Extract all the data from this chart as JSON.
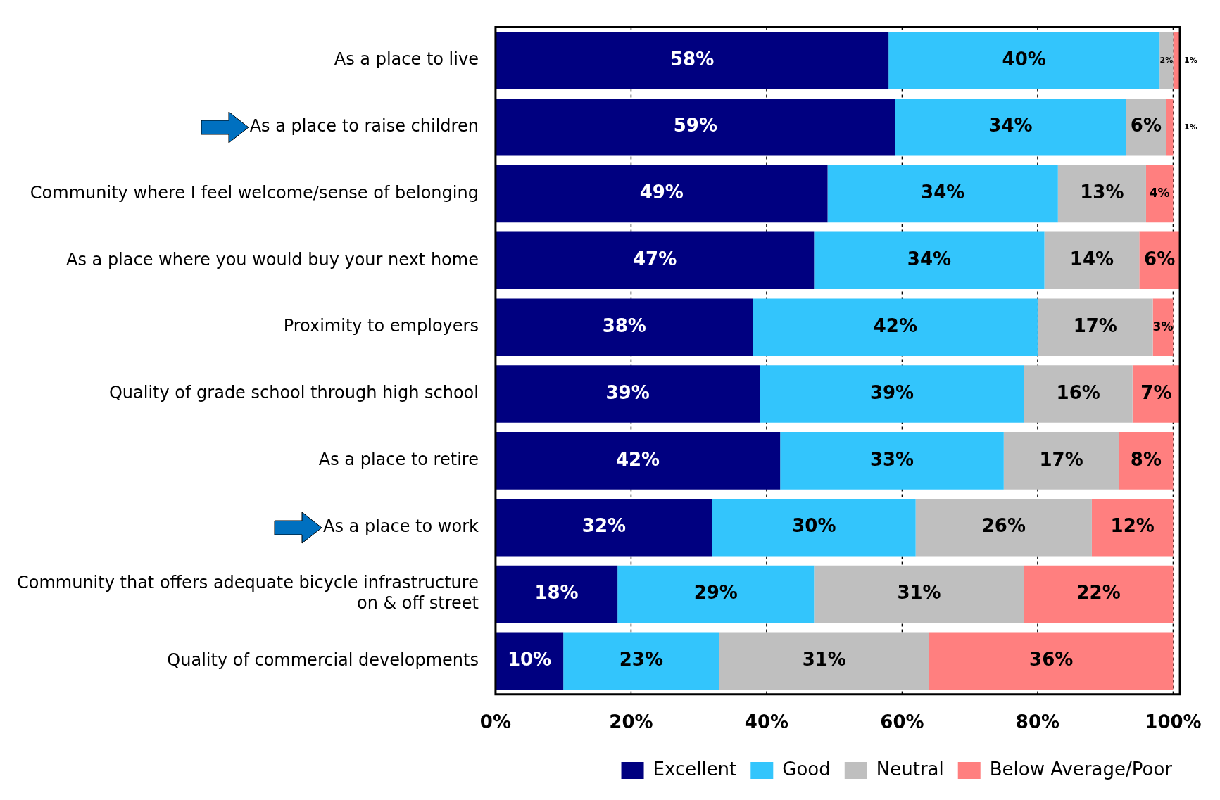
{
  "chart_data": {
    "type": "bar",
    "orientation": "horizontal",
    "stacked": true,
    "categories": [
      "As a place to live",
      "As a place to raise children",
      "Community where I feel welcome/sense of belonging",
      "As a place where you would buy your next home",
      "Proximity to employers",
      "Quality of grade school through high school",
      "As a place to retire",
      "As a place to work",
      "Community that offers adequate bicycle infrastructure on & off street",
      "Quality of commercial developments"
    ],
    "series": [
      {
        "name": "Excellent",
        "color": "#000080",
        "values": [
          58,
          59,
          49,
          47,
          38,
          39,
          42,
          32,
          18,
          10
        ],
        "value_labels": [
          "58%",
          "59%",
          "49%",
          "47%",
          "38%",
          "39%",
          "42%",
          "32%",
          "18%",
          "10%"
        ]
      },
      {
        "name": "Good",
        "color": "#33c5fc",
        "values": [
          40,
          34,
          34,
          34,
          42,
          39,
          33,
          30,
          29,
          23
        ],
        "value_labels": [
          "40%",
          "34%",
          "34%",
          "34%",
          "42%",
          "39%",
          "33%",
          "30%",
          "29%",
          "23%"
        ]
      },
      {
        "name": "Neutral",
        "color": "#bfbfbf",
        "values": [
          2,
          6,
          13,
          14,
          17,
          16,
          17,
          26,
          31,
          31
        ],
        "value_labels": [
          "2%",
          "6%",
          "13%",
          "14%",
          "17%",
          "16%",
          "17%",
          "26%",
          "31%",
          "31%"
        ]
      },
      {
        "name": "Below Average/Poor",
        "color": "#ff7f7f",
        "values": [
          1,
          1,
          4,
          6,
          3,
          7,
          8,
          12,
          22,
          36
        ],
        "value_labels": [
          "1%",
          "1%",
          "4%",
          "6%",
          "3%",
          "7%",
          "8%",
          "12%",
          "22%",
          "36%"
        ]
      }
    ],
    "xlim": [
      0,
      101
    ],
    "xticks": [
      {
        "value": 0,
        "label": "0%"
      },
      {
        "value": 20,
        "label": "20%"
      },
      {
        "value": 40,
        "label": "40%"
      },
      {
        "value": 60,
        "label": "60%"
      },
      {
        "value": 80,
        "label": "80%"
      },
      {
        "value": 100,
        "label": "100%"
      }
    ],
    "grid": "x",
    "legend": "bottom"
  }
}
